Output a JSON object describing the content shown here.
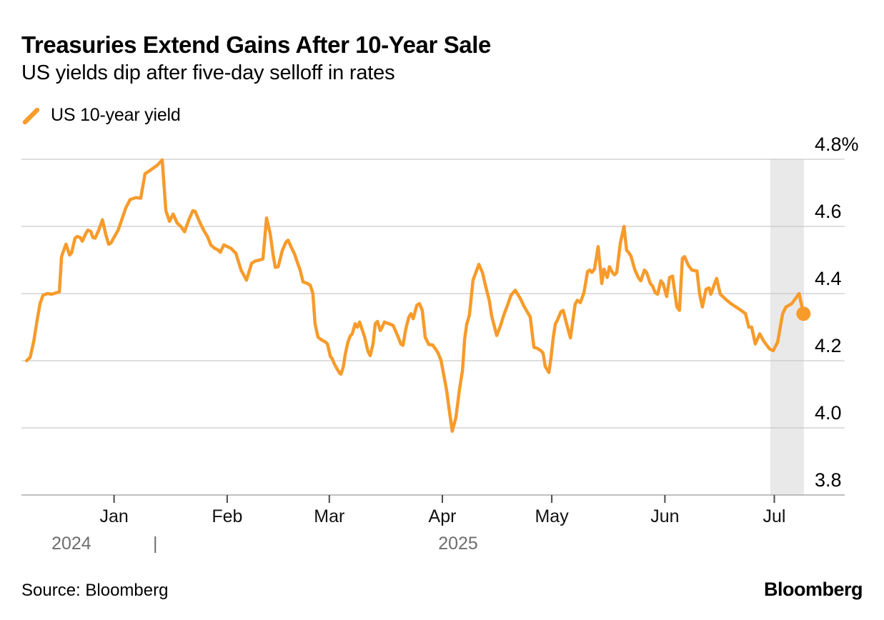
{
  "header": {
    "title": "Treasuries Extend Gains After 10-Year Sale",
    "subtitle": "US yields dip after five-day selloff in rates"
  },
  "legend": {
    "series_label": "US 10-year yield"
  },
  "footer": {
    "source": "Source: Bloomberg",
    "brand": "Bloomberg"
  },
  "colors": {
    "accent_orange": "#F79B2B",
    "gridline": "#C9C9C9",
    "axis_line": "#9B9B9B",
    "tick": "#4A4A4A",
    "month_label": "#111111",
    "year_label": "#6E6E6E",
    "y_label": "#000000",
    "highlight_band": "#E9E9E9",
    "background": "#FFFFFF"
  },
  "chart_data": {
    "type": "line",
    "title": "Treasuries Extend Gains After 10-Year Sale",
    "subtitle": "US yields dip after five-day selloff in rates",
    "unit": "%",
    "legend_position": "top-left",
    "y_axis": {
      "min": 3.8,
      "max": 4.8,
      "grid": true,
      "side": "right",
      "ticks": [
        {
          "value": 3.8,
          "label": "3.8"
        },
        {
          "value": 4.0,
          "label": "4.0"
        },
        {
          "value": 4.2,
          "label": "4.2"
        },
        {
          "value": 4.4,
          "label": "4.4"
        },
        {
          "value": 4.6,
          "label": "4.6"
        },
        {
          "value": 4.8,
          "label": "4.8%"
        }
      ]
    },
    "x_axis": {
      "unit": "days-from-early-Dec-2024",
      "range": [
        -1.4,
        224.3
      ],
      "month_ticks": [
        {
          "day": 24,
          "label": "Jan"
        },
        {
          "day": 55,
          "label": "Feb"
        },
        {
          "day": 83,
          "label": "Mar"
        },
        {
          "day": 114,
          "label": "Apr"
        },
        {
          "day": 144,
          "label": "May"
        },
        {
          "day": 175,
          "label": "Jun"
        },
        {
          "day": 205,
          "label": "Jul"
        }
      ],
      "year_labels": [
        {
          "day": 12.3,
          "label": "2024"
        },
        {
          "day": 35.3,
          "label": "|"
        },
        {
          "day": 118.3,
          "label": "2025"
        }
      ]
    },
    "highlight_band": {
      "day_start": 203.9,
      "day_end": 213.1
    },
    "series": [
      {
        "name": "US 10-year yield",
        "color": "#F79B2B",
        "line_width": 4.5,
        "end_dot": true,
        "end_dot_radius": 10,
        "points": [
          [
            0,
            4.2
          ],
          [
            1,
            4.21
          ],
          [
            2,
            4.26
          ],
          [
            2.9,
            4.32
          ],
          [
            3.7,
            4.37
          ],
          [
            4.5,
            4.395
          ],
          [
            5.7,
            4.4
          ],
          [
            6.9,
            4.398
          ],
          [
            8,
            4.402
          ],
          [
            9,
            4.405
          ],
          [
            9.6,
            4.51
          ],
          [
            10,
            4.523
          ],
          [
            10.8,
            4.547
          ],
          [
            11.8,
            4.515
          ],
          [
            12.3,
            4.52
          ],
          [
            13.3,
            4.565
          ],
          [
            13.9,
            4.57
          ],
          [
            14.7,
            4.567
          ],
          [
            15.3,
            4.556
          ],
          [
            16.3,
            4.58
          ],
          [
            16.8,
            4.589
          ],
          [
            17.6,
            4.585
          ],
          [
            18.2,
            4.567
          ],
          [
            18.8,
            4.565
          ],
          [
            19.8,
            4.589
          ],
          [
            20.8,
            4.62
          ],
          [
            21.7,
            4.577
          ],
          [
            22.5,
            4.547
          ],
          [
            23.1,
            4.55
          ],
          [
            24.1,
            4.57
          ],
          [
            25.1,
            4.589
          ],
          [
            26.1,
            4.62
          ],
          [
            27.2,
            4.655
          ],
          [
            28.4,
            4.68
          ],
          [
            30,
            4.686
          ],
          [
            31.3,
            4.684
          ],
          [
            32.5,
            4.757
          ],
          [
            33.5,
            4.764
          ],
          [
            34.9,
            4.775
          ],
          [
            35.8,
            4.782
          ],
          [
            37.2,
            4.798
          ],
          [
            38.2,
            4.647
          ],
          [
            39.2,
            4.615
          ],
          [
            40.2,
            4.637
          ],
          [
            41.3,
            4.61
          ],
          [
            42.3,
            4.6
          ],
          [
            43.3,
            4.584
          ],
          [
            44.5,
            4.62
          ],
          [
            45.6,
            4.647
          ],
          [
            46.2,
            4.645
          ],
          [
            47.6,
            4.61
          ],
          [
            48.6,
            4.588
          ],
          [
            49.6,
            4.57
          ],
          [
            50.5,
            4.545
          ],
          [
            51.5,
            4.535
          ],
          [
            52.5,
            4.53
          ],
          [
            53.1,
            4.523
          ],
          [
            54.1,
            4.545
          ],
          [
            55,
            4.54
          ],
          [
            56,
            4.535
          ],
          [
            57.4,
            4.52
          ],
          [
            58.8,
            4.47
          ],
          [
            60.3,
            4.44
          ],
          [
            61.7,
            4.49
          ],
          [
            62.7,
            4.497
          ],
          [
            63.9,
            4.5
          ],
          [
            64.8,
            4.503
          ],
          [
            65.8,
            4.625
          ],
          [
            66.8,
            4.578
          ],
          [
            67.6,
            4.515
          ],
          [
            68.2,
            4.478
          ],
          [
            69,
            4.48
          ],
          [
            70.1,
            4.527
          ],
          [
            71.1,
            4.553
          ],
          [
            71.7,
            4.559
          ],
          [
            72.7,
            4.535
          ],
          [
            73.5,
            4.517
          ],
          [
            74.4,
            4.488
          ],
          [
            75,
            4.47
          ],
          [
            75.8,
            4.435
          ],
          [
            77,
            4.43
          ],
          [
            77.8,
            4.425
          ],
          [
            78.5,
            4.4
          ],
          [
            79.1,
            4.31
          ],
          [
            79.9,
            4.27
          ],
          [
            80.9,
            4.262
          ],
          [
            81.9,
            4.256
          ],
          [
            82.5,
            4.25
          ],
          [
            83.3,
            4.213
          ],
          [
            83.8,
            4.206
          ],
          [
            84.4,
            4.19
          ],
          [
            85.8,
            4.163
          ],
          [
            86.2,
            4.16
          ],
          [
            86.8,
            4.18
          ],
          [
            87.4,
            4.22
          ],
          [
            88.1,
            4.255
          ],
          [
            88.7,
            4.273
          ],
          [
            89.3,
            4.28
          ],
          [
            90.1,
            4.31
          ],
          [
            90.7,
            4.3
          ],
          [
            91.3,
            4.315
          ],
          [
            92.1,
            4.29
          ],
          [
            92.7,
            4.27
          ],
          [
            93.6,
            4.228
          ],
          [
            94.2,
            4.215
          ],
          [
            95,
            4.25
          ],
          [
            95.6,
            4.31
          ],
          [
            96.2,
            4.317
          ],
          [
            97,
            4.29
          ],
          [
            97.5,
            4.3
          ],
          [
            98.1,
            4.315
          ],
          [
            98.9,
            4.312
          ],
          [
            99.9,
            4.308
          ],
          [
            100.5,
            4.305
          ],
          [
            101.1,
            4.29
          ],
          [
            101.9,
            4.27
          ],
          [
            102.6,
            4.25
          ],
          [
            103.2,
            4.246
          ],
          [
            104,
            4.296
          ],
          [
            104.8,
            4.33
          ],
          [
            105.4,
            4.34
          ],
          [
            106,
            4.325
          ],
          [
            107,
            4.365
          ],
          [
            107.7,
            4.37
          ],
          [
            108.5,
            4.35
          ],
          [
            109.3,
            4.27
          ],
          [
            110.3,
            4.248
          ],
          [
            111.3,
            4.247
          ],
          [
            112.2,
            4.234
          ],
          [
            112.8,
            4.223
          ],
          [
            113.6,
            4.202
          ],
          [
            114.6,
            4.145
          ],
          [
            115.2,
            4.11
          ],
          [
            115.8,
            4.06
          ],
          [
            116.7,
            3.99
          ],
          [
            117.7,
            4.03
          ],
          [
            118.7,
            4.115
          ],
          [
            119.5,
            4.17
          ],
          [
            120.1,
            4.265
          ],
          [
            120.7,
            4.31
          ],
          [
            121.4,
            4.335
          ],
          [
            122.4,
            4.44
          ],
          [
            124,
            4.487
          ],
          [
            125,
            4.462
          ],
          [
            125.9,
            4.42
          ],
          [
            126.9,
            4.377
          ],
          [
            127.5,
            4.334
          ],
          [
            128.9,
            4.275
          ],
          [
            129.9,
            4.303
          ],
          [
            130.8,
            4.335
          ],
          [
            131.8,
            4.364
          ],
          [
            132.8,
            4.395
          ],
          [
            134,
            4.41
          ],
          [
            135.4,
            4.385
          ],
          [
            136.3,
            4.364
          ],
          [
            138.1,
            4.33
          ],
          [
            139.1,
            4.24
          ],
          [
            140,
            4.237
          ],
          [
            141,
            4.23
          ],
          [
            141.6,
            4.223
          ],
          [
            142.2,
            4.183
          ],
          [
            143.2,
            4.165
          ],
          [
            143.8,
            4.21
          ],
          [
            144.4,
            4.27
          ],
          [
            145,
            4.31
          ],
          [
            145.5,
            4.32
          ],
          [
            146.5,
            4.346
          ],
          [
            147.1,
            4.35
          ],
          [
            148.5,
            4.292
          ],
          [
            149.1,
            4.268
          ],
          [
            150.4,
            4.368
          ],
          [
            151,
            4.38
          ],
          [
            151.8,
            4.373
          ],
          [
            152.8,
            4.402
          ],
          [
            153.8,
            4.466
          ],
          [
            154.4,
            4.47
          ],
          [
            155,
            4.463
          ],
          [
            155.7,
            4.473
          ],
          [
            156.7,
            4.54
          ],
          [
            157.7,
            4.43
          ],
          [
            158.3,
            4.473
          ],
          [
            159.2,
            4.448
          ],
          [
            159.8,
            4.48
          ],
          [
            160.6,
            4.463
          ],
          [
            161.2,
            4.456
          ],
          [
            161.8,
            4.463
          ],
          [
            162.8,
            4.551
          ],
          [
            163.8,
            4.6
          ],
          [
            164.5,
            4.529
          ],
          [
            165.1,
            4.522
          ],
          [
            165.7,
            4.512
          ],
          [
            166.7,
            4.473
          ],
          [
            167.7,
            4.448
          ],
          [
            168.4,
            4.438
          ],
          [
            169.4,
            4.47
          ],
          [
            170,
            4.463
          ],
          [
            171,
            4.43
          ],
          [
            171.6,
            4.423
          ],
          [
            172.4,
            4.402
          ],
          [
            173,
            4.398
          ],
          [
            173.9,
            4.438
          ],
          [
            174.5,
            4.43
          ],
          [
            175.5,
            4.391
          ],
          [
            176.3,
            4.448
          ],
          [
            177.1,
            4.452
          ],
          [
            178.3,
            4.36
          ],
          [
            179,
            4.35
          ],
          [
            179.8,
            4.505
          ],
          [
            180.4,
            4.51
          ],
          [
            181.4,
            4.485
          ],
          [
            182.4,
            4.47
          ],
          [
            183.8,
            4.467
          ],
          [
            184.5,
            4.4
          ],
          [
            185.3,
            4.36
          ],
          [
            186.3,
            4.413
          ],
          [
            187.1,
            4.417
          ],
          [
            187.6,
            4.398
          ],
          [
            189,
            4.44
          ],
          [
            189.2,
            4.445
          ],
          [
            190.2,
            4.398
          ],
          [
            191,
            4.39
          ],
          [
            192,
            4.38
          ],
          [
            193.1,
            4.37
          ],
          [
            194.5,
            4.36
          ],
          [
            195.9,
            4.35
          ],
          [
            197.1,
            4.34
          ],
          [
            198,
            4.3
          ],
          [
            198.8,
            4.3
          ],
          [
            199.8,
            4.25
          ],
          [
            201,
            4.28
          ],
          [
            202,
            4.26
          ],
          [
            203,
            4.245
          ],
          [
            203.7,
            4.235
          ],
          [
            204.7,
            4.23
          ],
          [
            205.9,
            4.255
          ],
          [
            207.3,
            4.34
          ],
          [
            208.2,
            4.36
          ],
          [
            209.8,
            4.37
          ],
          [
            210.8,
            4.385
          ],
          [
            211.8,
            4.4
          ],
          [
            213,
            4.34
          ]
        ]
      }
    ]
  }
}
